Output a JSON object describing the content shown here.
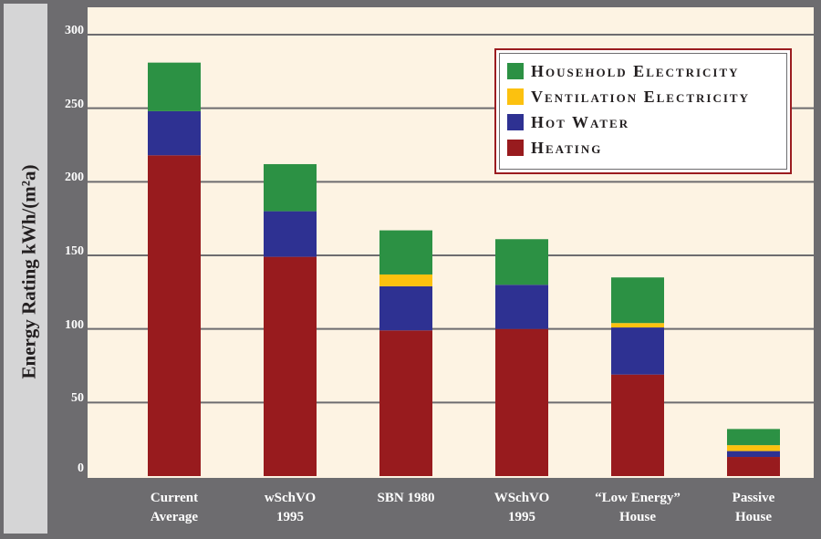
{
  "chart_data": {
    "type": "bar",
    "stacked": true,
    "ylabel": "Energy Rating kWh/(m²a)",
    "ylim": [
      0,
      300
    ],
    "yticks": [
      "0",
      "50",
      "100",
      "150",
      "200",
      "250",
      "300"
    ],
    "grid": true,
    "legend_position": "top-right",
    "categories": [
      [
        "Current",
        "Average"
      ],
      [
        "wSchVO",
        "1995"
      ],
      [
        "SBN 1980"
      ],
      [
        "WSchVO",
        "1995"
      ],
      [
        "“Low Energy”",
        "House"
      ],
      [
        "Passive",
        "House"
      ]
    ],
    "series": [
      {
        "name": "Heating",
        "color": "#981b1e",
        "values": [
          218,
          149,
          99,
          100,
          69,
          13
        ]
      },
      {
        "name": "Hot Water",
        "color": "#2e3192",
        "values": [
          30,
          31,
          30,
          30,
          32,
          4
        ]
      },
      {
        "name": "Ventilation Electricity",
        "color": "#fcc10f",
        "values": [
          0,
          0,
          8,
          0,
          3,
          4
        ]
      },
      {
        "name": "Household Electricity",
        "color": "#2c9144",
        "values": [
          33,
          32,
          30,
          31,
          31,
          11
        ]
      }
    ],
    "legend_order": [
      "Household Electricity",
      "Ventilation Electricity",
      "Hot Water",
      "Heating"
    ]
  }
}
